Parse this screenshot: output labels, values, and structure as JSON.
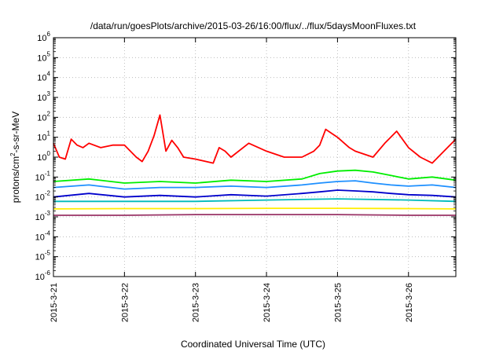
{
  "chart_data": {
    "type": "line",
    "title": "/data/run/goesPlots/archive/2015-03-26/16:00/flux/../flux/5daysMoonFluxes.txt",
    "xlabel": "Coordinated Universal Time (UTC)",
    "ylabel": {
      "pre": "protons/cm",
      "sup": "2",
      "post": "-s-sr-MeV"
    },
    "x_scale": "time",
    "xlim": [
      "2015-03-21 00:00",
      "2015-03-26 16:00"
    ],
    "x_ticks": [
      "2015-3-21",
      "2015-3-22",
      "2015-3-23",
      "2015-3-24",
      "2015-3-25",
      "2015-3-26"
    ],
    "y_scale": "log",
    "ylim": [
      1e-06,
      1000000.0
    ],
    "y_ticks": [
      {
        "base": "10",
        "exp": "-6"
      },
      {
        "base": "10",
        "exp": "-5"
      },
      {
        "base": "10",
        "exp": "-4"
      },
      {
        "base": "10",
        "exp": "-3"
      },
      {
        "base": "10",
        "exp": "-2"
      },
      {
        "base": "10",
        "exp": "-1"
      },
      {
        "base": "10",
        "exp": "0"
      },
      {
        "base": "10",
        "exp": "1"
      },
      {
        "base": "10",
        "exp": "2"
      },
      {
        "base": "10",
        "exp": "3"
      },
      {
        "base": "10",
        "exp": "4"
      },
      {
        "base": "10",
        "exp": "5"
      },
      {
        "base": "10",
        "exp": "6"
      }
    ],
    "grid": true,
    "legend": "none",
    "series": [
      {
        "color": "#ff0000",
        "x": [
          "2015-03-21 00:00",
          "2015-03-21 02:00",
          "2015-03-21 04:00",
          "2015-03-21 06:00",
          "2015-03-21 08:00",
          "2015-03-21 10:00",
          "2015-03-21 12:00",
          "2015-03-21 16:00",
          "2015-03-21 20:00",
          "2015-03-22 00:00",
          "2015-03-22 04:00",
          "2015-03-22 06:00",
          "2015-03-22 08:00",
          "2015-03-22 10:00",
          "2015-03-22 12:00",
          "2015-03-22 14:00",
          "2015-03-22 16:00",
          "2015-03-22 18:00",
          "2015-03-22 20:00",
          "2015-03-23 00:00",
          "2015-03-23 06:00",
          "2015-03-23 08:00",
          "2015-03-23 10:00",
          "2015-03-23 12:00",
          "2015-03-23 18:00",
          "2015-03-24 00:00",
          "2015-03-24 06:00",
          "2015-03-24 12:00",
          "2015-03-24 16:00",
          "2015-03-24 18:00",
          "2015-03-24 20:00",
          "2015-03-25 00:00",
          "2015-03-25 04:00",
          "2015-03-25 06:00",
          "2015-03-25 12:00",
          "2015-03-25 16:00",
          "2015-03-25 20:00",
          "2015-03-26 00:00",
          "2015-03-26 04:00",
          "2015-03-26 08:00",
          "2015-03-26 12:00",
          "2015-03-26 16:00"
        ],
        "y": [
          5,
          1,
          0.8,
          8,
          4,
          3,
          5,
          3,
          4,
          4,
          1,
          0.6,
          2,
          12,
          130,
          2,
          7,
          3,
          1,
          0.8,
          0.5,
          3,
          2,
          1,
          5,
          2,
          1,
          1,
          2,
          4,
          25,
          10,
          3,
          2,
          1,
          5,
          20,
          3,
          1,
          0.5,
          2,
          8
        ]
      },
      {
        "color": "#00ee00",
        "x": [
          "2015-03-21 00:00",
          "2015-03-21 12:00",
          "2015-03-22 00:00",
          "2015-03-22 12:00",
          "2015-03-23 00:00",
          "2015-03-23 12:00",
          "2015-03-24 00:00",
          "2015-03-24 12:00",
          "2015-03-24 18:00",
          "2015-03-25 00:00",
          "2015-03-25 06:00",
          "2015-03-25 12:00",
          "2015-03-25 18:00",
          "2015-03-26 00:00",
          "2015-03-26 08:00",
          "2015-03-26 16:00"
        ],
        "y": [
          0.06,
          0.08,
          0.05,
          0.06,
          0.05,
          0.07,
          0.06,
          0.08,
          0.15,
          0.2,
          0.22,
          0.18,
          0.12,
          0.08,
          0.1,
          0.07
        ]
      },
      {
        "color": "#1e90ff",
        "x": [
          "2015-03-21 00:00",
          "2015-03-21 12:00",
          "2015-03-22 00:00",
          "2015-03-22 12:00",
          "2015-03-23 00:00",
          "2015-03-23 12:00",
          "2015-03-24 00:00",
          "2015-03-24 12:00",
          "2015-03-24 18:00",
          "2015-03-25 00:00",
          "2015-03-25 06:00",
          "2015-03-25 12:00",
          "2015-03-25 18:00",
          "2015-03-26 00:00",
          "2015-03-26 08:00",
          "2015-03-26 16:00"
        ],
        "y": [
          0.03,
          0.04,
          0.025,
          0.03,
          0.03,
          0.035,
          0.03,
          0.04,
          0.05,
          0.06,
          0.065,
          0.05,
          0.04,
          0.035,
          0.04,
          0.03
        ]
      },
      {
        "color": "#0000cc",
        "x": [
          "2015-03-21 00:00",
          "2015-03-21 12:00",
          "2015-03-22 00:00",
          "2015-03-22 12:00",
          "2015-03-23 00:00",
          "2015-03-23 12:00",
          "2015-03-24 00:00",
          "2015-03-24 12:00",
          "2015-03-24 18:00",
          "2015-03-25 00:00",
          "2015-03-25 06:00",
          "2015-03-25 12:00",
          "2015-03-25 18:00",
          "2015-03-26 00:00",
          "2015-03-26 08:00",
          "2015-03-26 16:00"
        ],
        "y": [
          0.01,
          0.015,
          0.01,
          0.012,
          0.01,
          0.013,
          0.011,
          0.015,
          0.018,
          0.022,
          0.02,
          0.018,
          0.015,
          0.013,
          0.012,
          0.01
        ]
      },
      {
        "color": "#00bbbb",
        "x": [
          "2015-03-21 00:00",
          "2015-03-22 00:00",
          "2015-03-23 00:00",
          "2015-03-24 00:00",
          "2015-03-25 00:00",
          "2015-03-26 00:00",
          "2015-03-26 16:00"
        ],
        "y": [
          0.006,
          0.006,
          0.006,
          0.007,
          0.008,
          0.007,
          0.006
        ]
      },
      {
        "color": "#ffee00",
        "x": [
          "2015-03-21 00:00",
          "2015-03-22 00:00",
          "2015-03-23 00:00",
          "2015-03-24 00:00",
          "2015-03-25 00:00",
          "2015-03-26 00:00",
          "2015-03-26 16:00"
        ],
        "y": [
          0.0025,
          0.0026,
          0.0026,
          0.0027,
          0.0027,
          0.0026,
          0.0025
        ]
      },
      {
        "color": "#993366",
        "x": [
          "2015-03-21 00:00",
          "2015-03-22 00:00",
          "2015-03-23 00:00",
          "2015-03-24 00:00",
          "2015-03-25 00:00",
          "2015-03-26 00:00",
          "2015-03-26 16:00"
        ],
        "y": [
          0.0012,
          0.0012,
          0.0013,
          0.0013,
          0.0013,
          0.0012,
          0.0012
        ]
      }
    ]
  }
}
